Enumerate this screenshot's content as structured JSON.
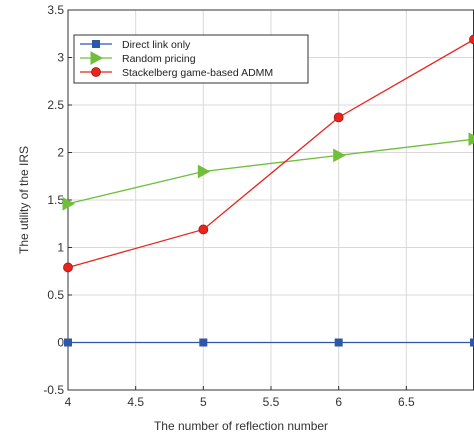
{
  "chart_data": {
    "type": "line",
    "title": "",
    "xlabel": "The number of reflection number",
    "ylabel": "The utility of the IRS",
    "xlim": [
      4,
      7
    ],
    "ylim": [
      -0.5,
      3.5
    ],
    "x_ticks": [
      4,
      4.5,
      5,
      5.5,
      6,
      6.5
    ],
    "x_tick_labels": [
      "4",
      "4.5",
      "5",
      "5.5",
      "6",
      "6.5"
    ],
    "y_ticks": [
      -0.5,
      0,
      0.5,
      1,
      1.5,
      2,
      2.5,
      3,
      3.5
    ],
    "y_tick_labels": [
      "-0.5",
      "0",
      "0.5",
      "1",
      "1.5",
      "2",
      "2.5",
      "3",
      "3.5"
    ],
    "grid": true,
    "legend_position": "top-left",
    "x": [
      4,
      5,
      6,
      7
    ],
    "series": [
      {
        "name": "Direct link only",
        "values": [
          0,
          0,
          0,
          0
        ],
        "color": "#2f57a8",
        "marker": "square"
      },
      {
        "name": "Random pricing",
        "values": [
          1.46,
          1.8,
          1.97,
          2.14
        ],
        "color": "#6fbf3a",
        "marker": "triangle-right"
      },
      {
        "name": "Stackelberg game-based ADMM",
        "values": [
          0.79,
          1.19,
          2.37,
          3.19
        ],
        "color": "#e8241f",
        "marker": "circle"
      }
    ]
  }
}
